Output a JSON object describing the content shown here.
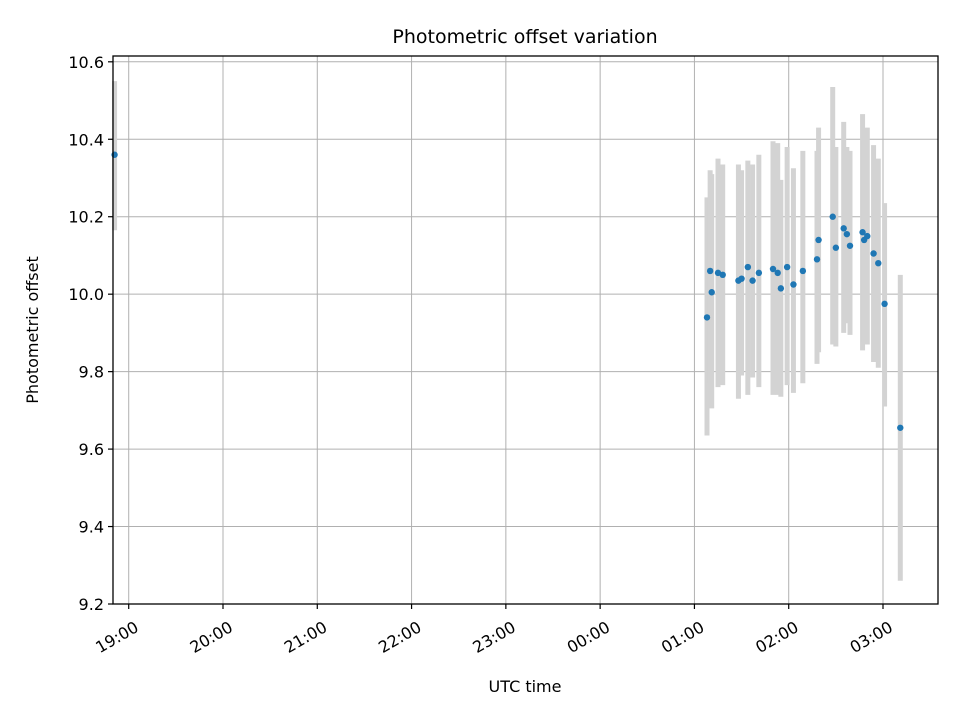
{
  "chart_data": {
    "type": "scatter",
    "title": "Photometric offset variation",
    "xlabel": "UTC time",
    "ylabel": "Photometric offset",
    "x_axis": {
      "kind": "time-of-day",
      "range": [
        "18:50",
        "03:35"
      ],
      "ticks": [
        "19:00",
        "20:00",
        "21:00",
        "22:00",
        "23:00",
        "00:00",
        "01:00",
        "02:00",
        "03:00"
      ]
    },
    "y_axis": {
      "range": [
        9.2,
        10.615
      ],
      "ticks": [
        "9.2",
        "9.4",
        "9.6",
        "9.8",
        "10.0",
        "10.2",
        "10.4",
        "10.6"
      ]
    },
    "grid": true,
    "colors": {
      "point": "#1f77b4",
      "errorbar": "#d3d3d3",
      "grid": "#b0b0b0"
    },
    "points": [
      {
        "t": "18:51",
        "y": 10.36,
        "lo": 10.165,
        "hi": 10.55
      },
      {
        "t": "01:08",
        "y": 9.94,
        "lo": 9.635,
        "hi": 10.25
      },
      {
        "t": "01:10",
        "y": 10.06,
        "lo": 9.77,
        "hi": 10.32
      },
      {
        "t": "01:11",
        "y": 10.005,
        "lo": 9.705,
        "hi": 10.31
      },
      {
        "t": "01:15",
        "y": 10.055,
        "lo": 9.76,
        "hi": 10.35
      },
      {
        "t": "01:18",
        "y": 10.05,
        "lo": 9.765,
        "hi": 10.335
      },
      {
        "t": "01:28",
        "y": 10.035,
        "lo": 9.73,
        "hi": 10.335
      },
      {
        "t": "01:30",
        "y": 10.04,
        "lo": 9.79,
        "hi": 10.32
      },
      {
        "t": "01:34",
        "y": 10.07,
        "lo": 9.74,
        "hi": 10.345
      },
      {
        "t": "01:37",
        "y": 10.035,
        "lo": 9.785,
        "hi": 10.335
      },
      {
        "t": "01:41",
        "y": 10.055,
        "lo": 9.76,
        "hi": 10.36
      },
      {
        "t": "01:50",
        "y": 10.065,
        "lo": 9.74,
        "hi": 10.395
      },
      {
        "t": "01:53",
        "y": 10.055,
        "lo": 9.74,
        "hi": 10.39
      },
      {
        "t": "01:55",
        "y": 10.015,
        "lo": 9.735,
        "hi": 10.295
      },
      {
        "t": "01:59",
        "y": 10.07,
        "lo": 9.765,
        "hi": 10.38
      },
      {
        "t": "02:03",
        "y": 10.025,
        "lo": 9.745,
        "hi": 10.325
      },
      {
        "t": "02:09",
        "y": 10.06,
        "lo": 9.77,
        "hi": 10.37
      },
      {
        "t": "02:18",
        "y": 10.09,
        "lo": 9.82,
        "hi": 10.37
      },
      {
        "t": "02:19",
        "y": 10.14,
        "lo": 9.85,
        "hi": 10.43
      },
      {
        "t": "02:28",
        "y": 10.2,
        "lo": 9.87,
        "hi": 10.535
      },
      {
        "t": "02:30",
        "y": 10.12,
        "lo": 9.865,
        "hi": 10.38
      },
      {
        "t": "02:35",
        "y": 10.17,
        "lo": 9.9,
        "hi": 10.445
      },
      {
        "t": "02:37",
        "y": 10.155,
        "lo": 9.925,
        "hi": 10.38
      },
      {
        "t": "02:39",
        "y": 10.125,
        "lo": 9.895,
        "hi": 10.37
      },
      {
        "t": "02:47",
        "y": 10.16,
        "lo": 9.855,
        "hi": 10.465
      },
      {
        "t": "02:48",
        "y": 10.14,
        "lo": 9.875,
        "hi": 10.395
      },
      {
        "t": "02:50",
        "y": 10.15,
        "lo": 9.87,
        "hi": 10.43
      },
      {
        "t": "02:54",
        "y": 10.105,
        "lo": 9.825,
        "hi": 10.385
      },
      {
        "t": "02:57",
        "y": 10.08,
        "lo": 9.81,
        "hi": 10.35
      },
      {
        "t": "03:01",
        "y": 9.975,
        "lo": 9.71,
        "hi": 10.235
      },
      {
        "t": "03:11",
        "y": 9.655,
        "lo": 9.26,
        "hi": 10.05
      }
    ]
  }
}
